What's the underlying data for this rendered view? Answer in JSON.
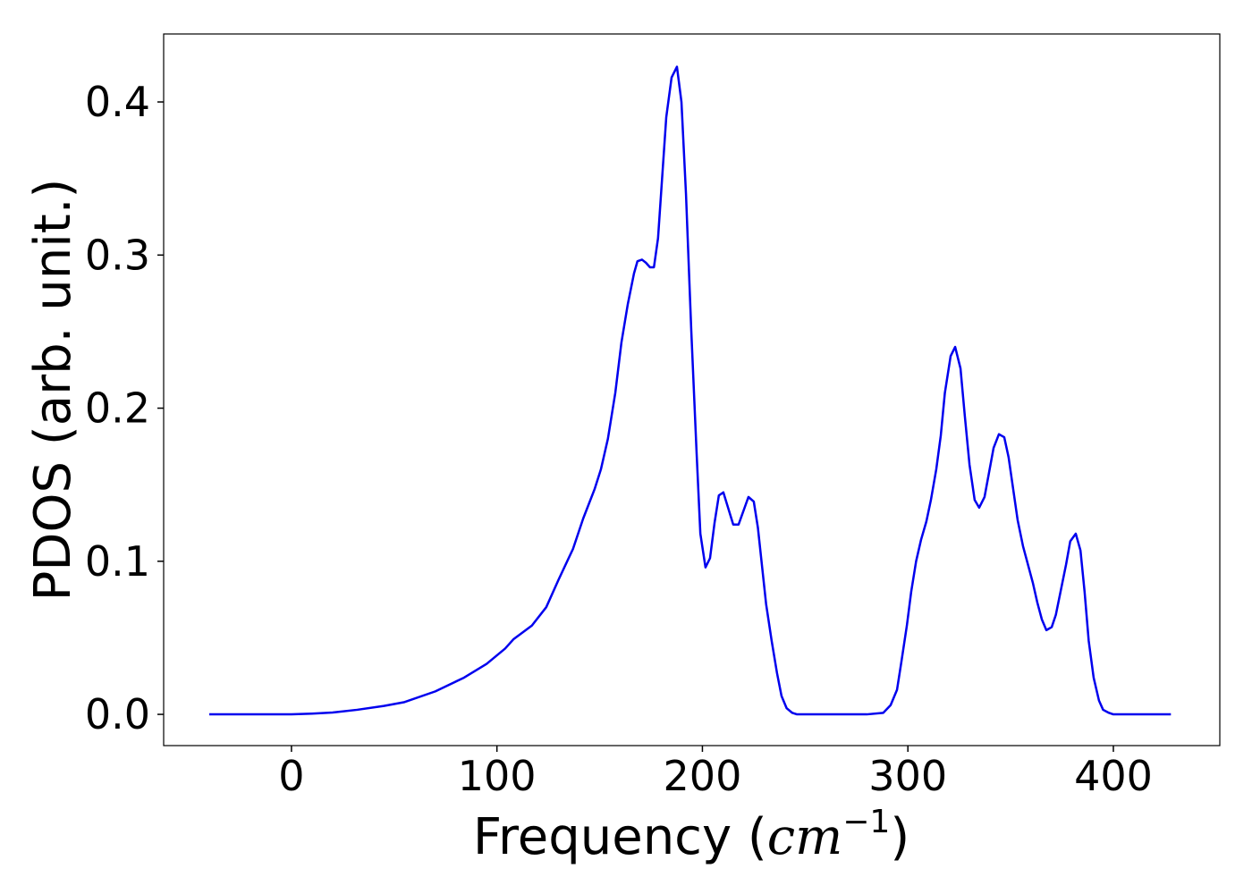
{
  "chart_data": {
    "type": "line",
    "x_label": [
      "Frequency (",
      "cm",
      "−1",
      ")"
    ],
    "y_label": "PDOS (arb. unit.)",
    "xlim": [
      -62.2,
      451.8
    ],
    "ylim": [
      -0.0204,
      0.4444
    ],
    "xticks": [
      0,
      100,
      200,
      300,
      400
    ],
    "yticks": [
      {
        "value": 0,
        "label": "0.0"
      },
      0.1,
      0.2,
      0.3,
      0.4
    ],
    "grid": false,
    "x": [
      -40,
      -20,
      0,
      10,
      20,
      32,
      45,
      55,
      70,
      84,
      95,
      104,
      108,
      117,
      124,
      130,
      137,
      142,
      147.5,
      150.6,
      154,
      157.6,
      160.6,
      163.7,
      166.7,
      168.4,
      170.6,
      172.5,
      174.5,
      176.4,
      178.4,
      182.4,
      185,
      187.6,
      189.8,
      192,
      194.6,
      197.2,
      199,
      201.5,
      203.7,
      205.9,
      208,
      210.2,
      215,
      217.6,
      222.4,
      225,
      227,
      231,
      233.7,
      236.3,
      238.5,
      241,
      243.7,
      246,
      260,
      280,
      288,
      291.6,
      294.7,
      296.8,
      299.5,
      301.6,
      304,
      306.4,
      309,
      311.2,
      313.8,
      316,
      318,
      320.8,
      323,
      325.6,
      327.7,
      330,
      332.5,
      334.7,
      337.3,
      339.5,
      341.7,
      344.3,
      346.9,
      349,
      353.4,
      356,
      360.8,
      363,
      365.2,
      367.4,
      370,
      372,
      377,
      379,
      381.7,
      384,
      386,
      388,
      390.4,
      393,
      395,
      397.8,
      400,
      415,
      428
    ],
    "series": [
      {
        "name": "PDOS",
        "color": "#0000ee",
        "values": [
          0,
          0,
          0,
          0.0005,
          0.0012,
          0.003,
          0.0055,
          0.008,
          0.015,
          0.024,
          0.033,
          0.043,
          0.049,
          0.058,
          0.07,
          0.088,
          0.108,
          0.128,
          0.147,
          0.16,
          0.18,
          0.21,
          0.243,
          0.268,
          0.288,
          0.296,
          0.297,
          0.295,
          0.292,
          0.292,
          0.311,
          0.39,
          0.416,
          0.423,
          0.4,
          0.34,
          0.25,
          0.17,
          0.118,
          0.096,
          0.102,
          0.125,
          0.143,
          0.145,
          0.124,
          0.124,
          0.142,
          0.139,
          0.122,
          0.072,
          0.048,
          0.027,
          0.012,
          0.004,
          0.001,
          0,
          0,
          0,
          0.001,
          0.006,
          0.016,
          0.034,
          0.058,
          0.08,
          0.1,
          0.114,
          0.126,
          0.14,
          0.16,
          0.182,
          0.21,
          0.234,
          0.24,
          0.226,
          0.195,
          0.163,
          0.14,
          0.135,
          0.142,
          0.158,
          0.174,
          0.183,
          0.181,
          0.168,
          0.127,
          0.11,
          0.086,
          0.073,
          0.062,
          0.055,
          0.057,
          0.065,
          0.098,
          0.113,
          0.118,
          0.107,
          0.08,
          0.048,
          0.024,
          0.009,
          0.003,
          0.001,
          0,
          0,
          0
        ]
      }
    ]
  }
}
